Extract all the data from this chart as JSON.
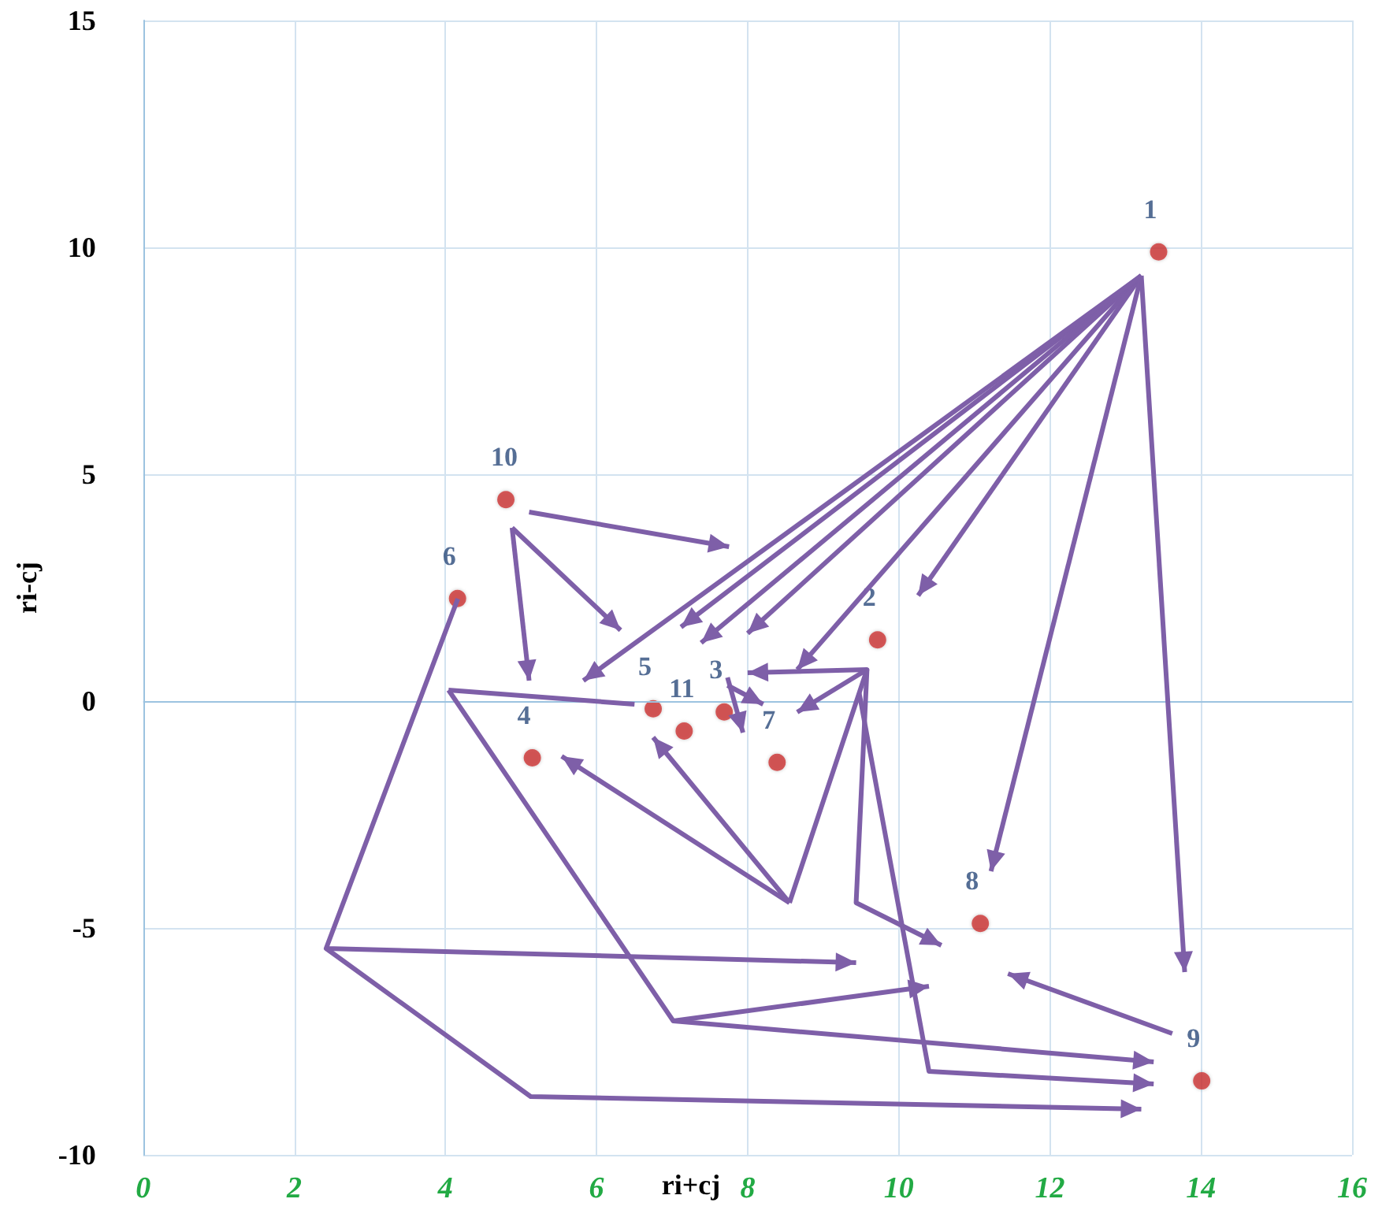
{
  "chart_data": {
    "type": "scatter",
    "xlabel": "ri+cj",
    "ylabel": "ri-cj",
    "series": [
      {
        "name": "1",
        "color": "#cc3333",
        "x": [
          13.44
        ],
        "values": [
          9.9
        ]
      },
      {
        "name": "2",
        "color": "#cc3333",
        "x": [
          9.72
        ],
        "values": [
          1.35
        ]
      },
      {
        "name": "3",
        "color": "#cc3333",
        "x": [
          7.69
        ],
        "values": [
          -0.24
        ]
      },
      {
        "name": "4",
        "color": "#cc3333",
        "x": [
          5.15
        ],
        "values": [
          -1.25
        ]
      },
      {
        "name": "5",
        "color": "#cc3333",
        "x": [
          6.75
        ],
        "values": [
          -0.17
        ]
      },
      {
        "name": "6",
        "color": "#cc3333",
        "x": [
          4.16
        ],
        "values": [
          2.26
        ]
      },
      {
        "name": "7",
        "color": "#cc3333",
        "x": [
          8.39
        ],
        "values": [
          -1.35
        ]
      },
      {
        "name": "8",
        "color": "#cc3333",
        "x": [
          11.08
        ],
        "values": [
          -4.9
        ]
      },
      {
        "name": "9",
        "color": "#cc3333",
        "x": [
          14.01
        ],
        "values": [
          -8.37
        ]
      },
      {
        "name": "10",
        "color": "#cc3333",
        "x": [
          4.8
        ],
        "values": [
          4.44
        ]
      },
      {
        "name": "11",
        "color": "#cc3333",
        "x": [
          7.16
        ],
        "values": [
          -0.66
        ]
      }
    ],
    "ref_lines": [
      {
        "axis": "y",
        "value": 0,
        "color": "#9cc3e0"
      }
    ],
    "xlim": [
      0,
      16
    ],
    "ylim": [
      -10,
      15
    ],
    "xticks": [
      0,
      2,
      4,
      6,
      8,
      10,
      12,
      14,
      16
    ],
    "yticks": [
      -10,
      -5,
      0,
      5,
      10,
      15
    ],
    "grid": true,
    "marker": "circle"
  }
}
